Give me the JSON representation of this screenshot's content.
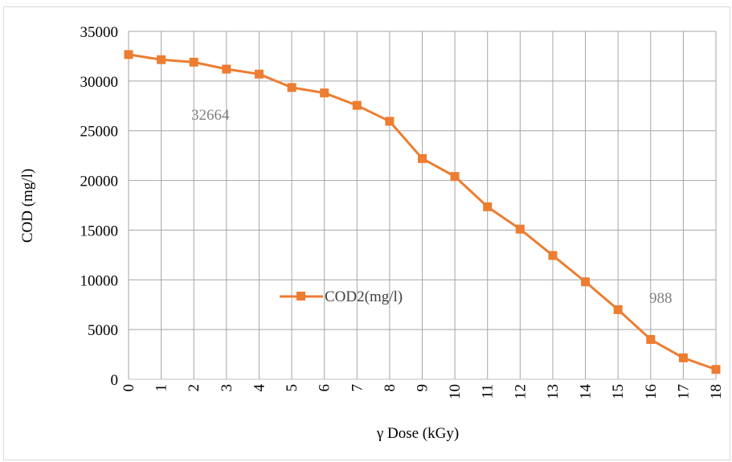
{
  "chart_data": {
    "type": "line",
    "title": "",
    "xlabel": "γ Dose (kGy)",
    "ylabel": "COD (mg/l)",
    "x": [
      0,
      1,
      2,
      3,
      4,
      5,
      6,
      7,
      8,
      9,
      10,
      11,
      12,
      13,
      14,
      15,
      16,
      17,
      18
    ],
    "series": [
      {
        "name": "COD2(mg/l)",
        "color": "#ED7D31",
        "marker": "square",
        "values": [
          32664,
          32150,
          31900,
          31200,
          30700,
          29350,
          28800,
          27550,
          25950,
          22200,
          20400,
          17350,
          15100,
          12450,
          9800,
          7000,
          4000,
          2150,
          988
        ]
      }
    ],
    "ylim": [
      0,
      35000
    ],
    "yticks": [
      0,
      5000,
      10000,
      15000,
      20000,
      25000,
      30000,
      35000
    ],
    "grid": true,
    "legend_position": "center",
    "annotations": [
      "32664",
      "988"
    ]
  }
}
